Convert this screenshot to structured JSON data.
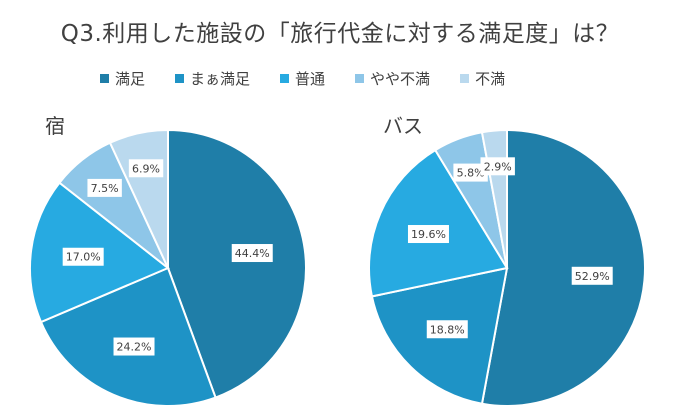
{
  "title": "Q3.利用した施設の「旅行代金に対する満足度」は？",
  "legend": [
    {
      "label": "満足",
      "color": "#1f7ea8"
    },
    {
      "label": "まぁ満足",
      "color": "#1e93c6"
    },
    {
      "label": "普通",
      "color": "#27aae1"
    },
    {
      "label": "やや不満",
      "color": "#8ec6e8"
    },
    {
      "label": "不満",
      "color": "#bad9ee"
    }
  ],
  "chart_data": [
    {
      "type": "pie",
      "title": "宿",
      "categories": [
        "満足",
        "まぁ満足",
        "普通",
        "やや不満",
        "不満"
      ],
      "values": [
        44.4,
        24.2,
        17.0,
        7.5,
        6.9
      ],
      "labels": [
        "44.4%",
        "24.2%",
        "17.0%",
        "7.5%",
        "6.9%"
      ],
      "colors": [
        "#1f7ea8",
        "#1e93c6",
        "#27aae1",
        "#8ec6e8",
        "#bad9ee"
      ]
    },
    {
      "type": "pie",
      "title": "バス",
      "categories": [
        "満足",
        "まぁ満足",
        "普通",
        "やや不満",
        "不満"
      ],
      "values": [
        52.9,
        18.8,
        19.6,
        5.8,
        2.9
      ],
      "labels": [
        "52.9%",
        "18.8%",
        "19.6%",
        "5.8%",
        "2.9%"
      ],
      "colors": [
        "#1f7ea8",
        "#1e93c6",
        "#27aae1",
        "#8ec6e8",
        "#bad9ee"
      ]
    }
  ]
}
